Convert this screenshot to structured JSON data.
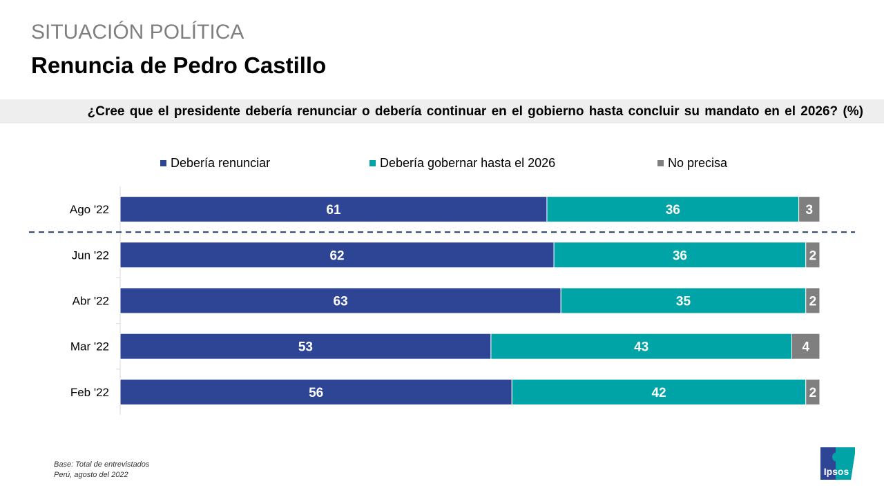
{
  "header": {
    "section": "SITUACIÓN POLÍTICA",
    "title": "Renuncia de Pedro Castillo"
  },
  "question": "¿Cree que el presidente debería renunciar o debería continuar en el gobierno hasta concluir su mandato en el 2026? (%)",
  "footnote": {
    "line1": "Base: Total de entrevistados",
    "line2": "Perú, agosto del 2022"
  },
  "logo": "Ipsos",
  "chart_data": {
    "type": "bar",
    "orientation": "horizontal-stacked",
    "categories": [
      "Ago '22",
      "Jun '22",
      "Abr '22",
      "Mar '22",
      "Feb '22"
    ],
    "series": [
      {
        "name": "Debería renunciar",
        "color": "#2e4596",
        "values": [
          61,
          62,
          63,
          53,
          56
        ]
      },
      {
        "name": "Debería gobernar hasta el 2026",
        "color": "#00a3a6",
        "values": [
          36,
          36,
          35,
          43,
          42
        ]
      },
      {
        "name": "No precisa",
        "color": "#7f7f7f",
        "values": [
          3,
          2,
          2,
          4,
          2
        ]
      }
    ],
    "xlim": [
      0,
      100
    ],
    "legend": "top",
    "separator_after": "Ago '22"
  }
}
